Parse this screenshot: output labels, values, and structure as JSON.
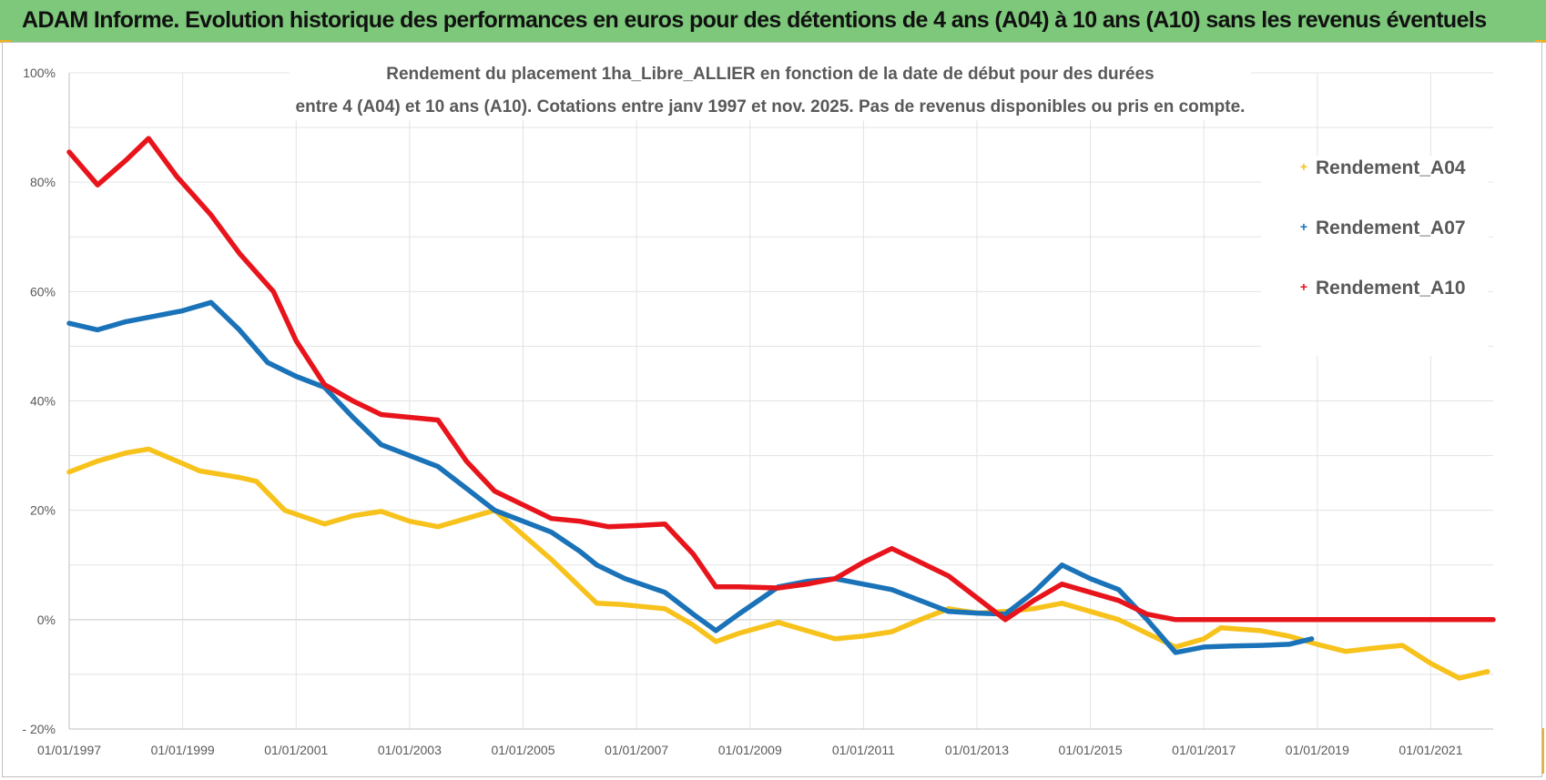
{
  "banner": {
    "title": "ADAM Informe. Evolution historique des performances en euros pour des détentions de 4 ans (A04) à 10 ans (A10) sans les revenus éventuels"
  },
  "chart_data": {
    "type": "line",
    "title_line1": "Rendement du placement 1ha_Libre_ALLIER en fonction de la date de début pour des durées",
    "title_line2": "entre 4 (A04) et 10 ans (A10). Cotations entre janv 1997 et nov. 2025. Pas de revenus disponibles ou pris en compte.",
    "x_ticks": [
      "01/01/1997",
      "01/01/1999",
      "01/01/2001",
      "01/01/2003",
      "01/01/2005",
      "01/01/2007",
      "01/01/2009",
      "01/01/2011",
      "01/01/2013",
      "01/01/2015",
      "01/01/2017",
      "01/01/2019",
      "01/01/2021"
    ],
    "y_ticks": [
      "100%",
      "80%",
      "60%",
      "40%",
      "20%",
      "0%",
      "- 20%"
    ],
    "ylim": [
      -20,
      100
    ],
    "xlim": [
      1997.0,
      2022.1
    ],
    "grid": true,
    "legend_position": "top-right",
    "series": [
      {
        "name": "Rendement_A04",
        "color": "#f7c21b",
        "points": [
          [
            1997.0,
            27
          ],
          [
            1997.5,
            29
          ],
          [
            1998.0,
            30.5
          ],
          [
            1998.4,
            31.2
          ],
          [
            1998.9,
            29
          ],
          [
            1999.3,
            27.2
          ],
          [
            2000.0,
            26
          ],
          [
            2000.3,
            25.3
          ],
          [
            2000.8,
            20
          ],
          [
            2001.5,
            17.5
          ],
          [
            2002.0,
            19
          ],
          [
            2002.5,
            19.8
          ],
          [
            2003.0,
            18
          ],
          [
            2003.5,
            17
          ],
          [
            2004.0,
            18.5
          ],
          [
            2004.5,
            20
          ],
          [
            2005.0,
            15.5
          ],
          [
            2005.5,
            11
          ],
          [
            2006.0,
            6
          ],
          [
            2006.3,
            3
          ],
          [
            2006.7,
            2.8
          ],
          [
            2007.5,
            2
          ],
          [
            2008.0,
            -1
          ],
          [
            2008.4,
            -4
          ],
          [
            2008.8,
            -2.5
          ],
          [
            2009.5,
            -0.5
          ],
          [
            2010.0,
            -2
          ],
          [
            2010.5,
            -3.5
          ],
          [
            2011.0,
            -3
          ],
          [
            2011.5,
            -2.2
          ],
          [
            2012.0,
            0
          ],
          [
            2012.5,
            2
          ],
          [
            2013.0,
            1.2
          ],
          [
            2013.5,
            1.5
          ],
          [
            2014.0,
            2
          ],
          [
            2014.5,
            3
          ],
          [
            2015.0,
            1.5
          ],
          [
            2015.5,
            0
          ],
          [
            2016.0,
            -2.5
          ],
          [
            2016.5,
            -5
          ],
          [
            2017.0,
            -3.5
          ],
          [
            2017.3,
            -1.5
          ],
          [
            2018.0,
            -2
          ],
          [
            2018.5,
            -3
          ],
          [
            2019.0,
            -4.5
          ],
          [
            2019.5,
            -5.8
          ],
          [
            2020.0,
            -5.2
          ],
          [
            2020.5,
            -4.7
          ],
          [
            2021.0,
            -8
          ],
          [
            2021.5,
            -10.7
          ],
          [
            2022.0,
            -9.5
          ]
        ]
      },
      {
        "name": "Rendement_A07",
        "color": "#1a73b8",
        "points": [
          [
            1997.0,
            54.2
          ],
          [
            1997.5,
            53
          ],
          [
            1998.0,
            54.5
          ],
          [
            1998.5,
            55.5
          ],
          [
            1999.0,
            56.5
          ],
          [
            1999.5,
            58
          ],
          [
            2000.0,
            53
          ],
          [
            2000.5,
            47
          ],
          [
            2001.0,
            44.5
          ],
          [
            2001.5,
            42.5
          ],
          [
            2002.0,
            37
          ],
          [
            2002.5,
            32
          ],
          [
            2003.0,
            30
          ],
          [
            2003.5,
            28
          ],
          [
            2004.0,
            24
          ],
          [
            2004.5,
            20
          ],
          [
            2005.0,
            18
          ],
          [
            2005.5,
            16
          ],
          [
            2006.0,
            12.5
          ],
          [
            2006.3,
            10
          ],
          [
            2006.8,
            7.5
          ],
          [
            2007.5,
            5
          ],
          [
            2008.0,
            1
          ],
          [
            2008.4,
            -2
          ],
          [
            2008.8,
            1
          ],
          [
            2009.5,
            6
          ],
          [
            2010.0,
            7
          ],
          [
            2010.5,
            7.5
          ],
          [
            2011.0,
            6.5
          ],
          [
            2011.5,
            5.5
          ],
          [
            2012.0,
            3.5
          ],
          [
            2012.5,
            1.5
          ],
          [
            2013.0,
            1.2
          ],
          [
            2013.5,
            1
          ],
          [
            2014.0,
            5
          ],
          [
            2014.5,
            10
          ],
          [
            2015.0,
            7.5
          ],
          [
            2015.5,
            5.5
          ],
          [
            2016.0,
            0
          ],
          [
            2016.5,
            -6
          ],
          [
            2017.0,
            -5
          ],
          [
            2017.5,
            -4.8
          ],
          [
            2018.0,
            -4.7
          ],
          [
            2018.5,
            -4.5
          ],
          [
            2018.9,
            -3.5
          ]
        ]
      },
      {
        "name": "Rendement_A10",
        "color": "#e8141c",
        "points": [
          [
            1997.0,
            85.5
          ],
          [
            1997.5,
            79.5
          ],
          [
            1998.0,
            84
          ],
          [
            1998.4,
            88
          ],
          [
            1998.9,
            81
          ],
          [
            1999.5,
            74
          ],
          [
            2000.0,
            67
          ],
          [
            2000.6,
            60
          ],
          [
            2001.0,
            51
          ],
          [
            2001.5,
            43
          ],
          [
            2002.0,
            40
          ],
          [
            2002.5,
            37.5
          ],
          [
            2003.0,
            37
          ],
          [
            2003.5,
            36.5
          ],
          [
            2004.0,
            29
          ],
          [
            2004.5,
            23.5
          ],
          [
            2005.0,
            21
          ],
          [
            2005.5,
            18.5
          ],
          [
            2006.0,
            18
          ],
          [
            2006.5,
            17
          ],
          [
            2007.0,
            17.2
          ],
          [
            2007.5,
            17.5
          ],
          [
            2008.0,
            12
          ],
          [
            2008.4,
            6
          ],
          [
            2008.8,
            6
          ],
          [
            2009.5,
            5.8
          ],
          [
            2010.0,
            6.5
          ],
          [
            2010.5,
            7.5
          ],
          [
            2011.0,
            10.5
          ],
          [
            2011.5,
            13
          ],
          [
            2012.0,
            10.5
          ],
          [
            2012.5,
            8
          ],
          [
            2013.0,
            4
          ],
          [
            2013.5,
            0
          ],
          [
            2014.0,
            3.5
          ],
          [
            2014.5,
            6.5
          ],
          [
            2015.0,
            5
          ],
          [
            2015.5,
            3.5
          ],
          [
            2016.0,
            1
          ],
          [
            2016.5,
            0
          ],
          [
            2017.0,
            0
          ],
          [
            2017.5,
            0
          ],
          [
            2018.0,
            0
          ],
          [
            2018.5,
            0
          ],
          [
            2019.0,
            0
          ],
          [
            2019.5,
            0
          ],
          [
            2020.0,
            0
          ],
          [
            2020.5,
            0
          ],
          [
            2021.0,
            0
          ],
          [
            2021.5,
            0
          ],
          [
            2022.1,
            0
          ]
        ]
      }
    ]
  }
}
